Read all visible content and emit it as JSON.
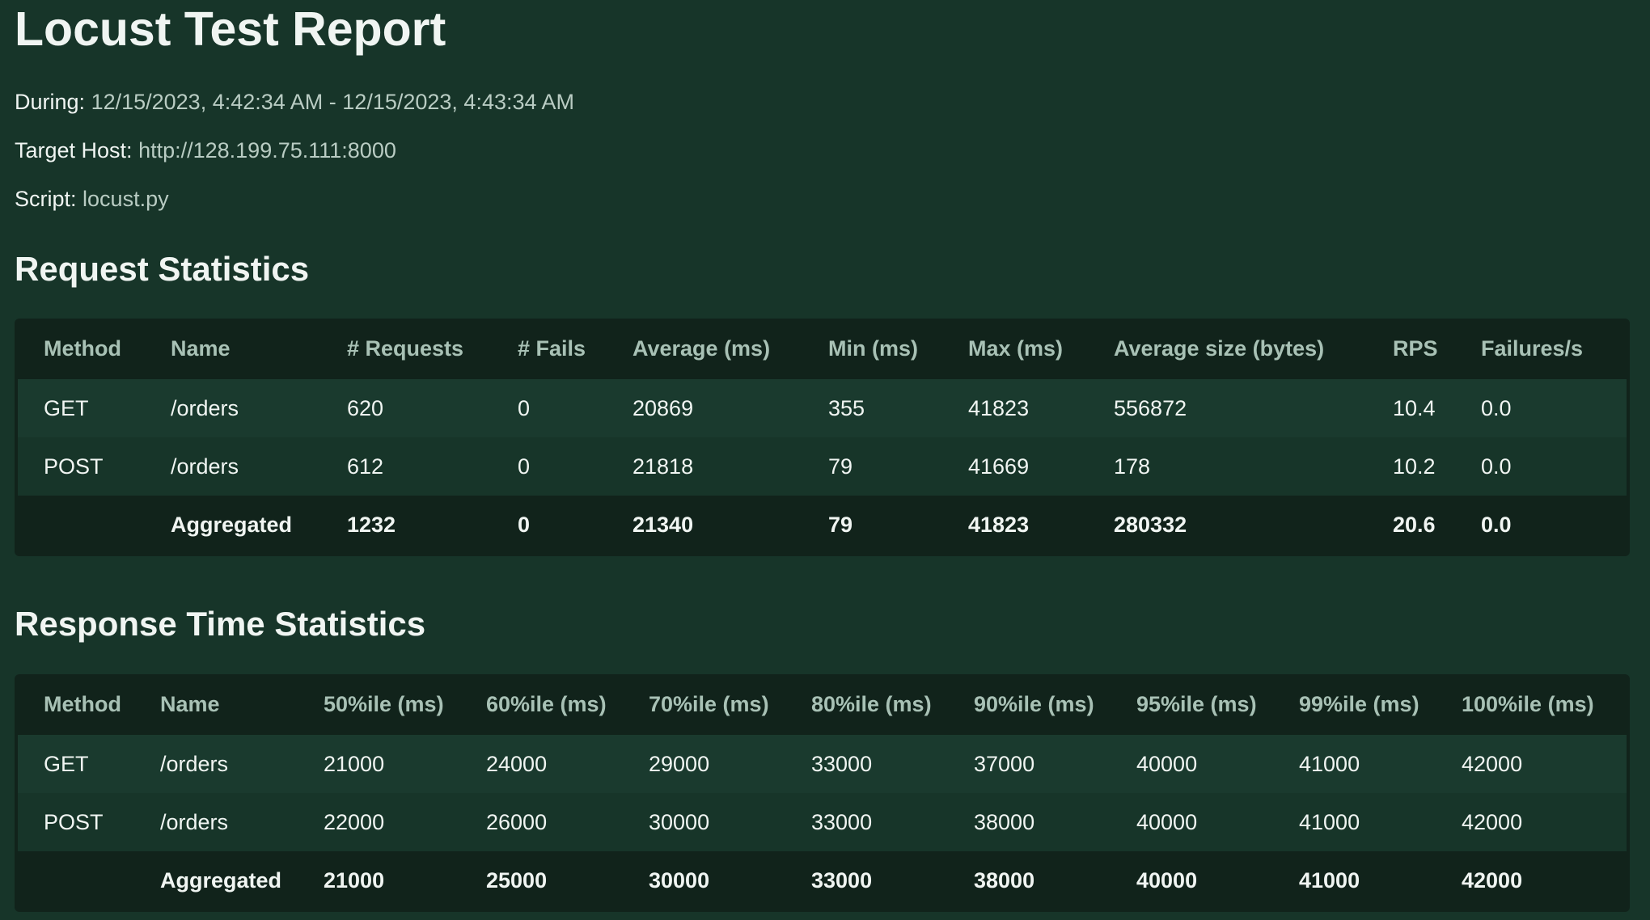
{
  "report": {
    "title": "Locust Test Report",
    "during_label": "During:",
    "during_value": "12/15/2023, 4:42:34 AM - 12/15/2023, 4:43:34 AM",
    "host_label": "Target Host:",
    "host_value": "http://128.199.75.111:8000",
    "script_label": "Script:",
    "script_value": "locust.py"
  },
  "request_stats": {
    "title": "Request Statistics",
    "headers": [
      "Method",
      "Name",
      "# Requests",
      "# Fails",
      "Average (ms)",
      "Min (ms)",
      "Max (ms)",
      "Average size (bytes)",
      "RPS",
      "Failures/s"
    ],
    "rows": [
      [
        "GET",
        "/orders",
        "620",
        "0",
        "20869",
        "355",
        "41823",
        "556872",
        "10.4",
        "0.0"
      ],
      [
        "POST",
        "/orders",
        "612",
        "0",
        "21818",
        "79",
        "41669",
        "178",
        "10.2",
        "0.0"
      ]
    ],
    "aggregated": [
      "",
      "Aggregated",
      "1232",
      "0",
      "21340",
      "79",
      "41823",
      "280332",
      "20.6",
      "0.0"
    ]
  },
  "response_stats": {
    "title": "Response Time Statistics",
    "headers": [
      "Method",
      "Name",
      "50%ile (ms)",
      "60%ile (ms)",
      "70%ile (ms)",
      "80%ile (ms)",
      "90%ile (ms)",
      "95%ile (ms)",
      "99%ile (ms)",
      "100%ile (ms)"
    ],
    "rows": [
      [
        "GET",
        "/orders",
        "21000",
        "24000",
        "29000",
        "33000",
        "37000",
        "40000",
        "41000",
        "42000"
      ],
      [
        "POST",
        "/orders",
        "22000",
        "26000",
        "30000",
        "33000",
        "38000",
        "40000",
        "41000",
        "42000"
      ]
    ],
    "aggregated": [
      "",
      "Aggregated",
      "21000",
      "25000",
      "30000",
      "33000",
      "38000",
      "40000",
      "41000",
      "42000"
    ]
  }
}
